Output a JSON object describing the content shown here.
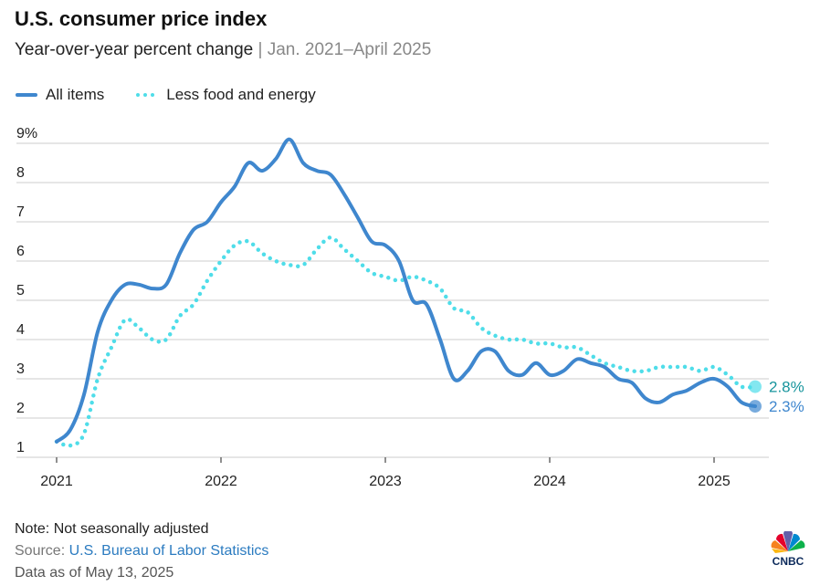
{
  "header": {
    "title": "U.S. consumer price index",
    "subtitle": "Year-over-year percent change",
    "separator": "|",
    "range": "Jan. 2021–April 2025"
  },
  "footer": {
    "note": "Note: Not seasonally adjusted",
    "source_label": "Source: ",
    "source_link": "U.S. Bureau of Labor Statistics",
    "as_of": "Data as of May 13, 2025",
    "logo": "CNBC"
  },
  "colors": {
    "all_items": "#3f87ce",
    "core": "#4fdde9",
    "core_label": "#17949c",
    "all_label": "#3f87ce",
    "grid": "#cccccc"
  },
  "chart_data": {
    "type": "line",
    "title": "U.S. consumer price index",
    "ylim": [
      1,
      9
    ],
    "yticks": [
      "1",
      "2",
      "3",
      "4",
      "5",
      "6",
      "7",
      "8",
      "9%"
    ],
    "xticks": [
      "2021",
      "2022",
      "2023",
      "2024",
      "2025"
    ],
    "x_start": "2021-01",
    "x_end": "2025-04",
    "frequency": "monthly",
    "grid": true,
    "legend": "top-left",
    "series": [
      {
        "name": "All items",
        "style": "solid",
        "end_label": "2.3%",
        "values": [
          1.4,
          1.7,
          2.6,
          4.2,
          5.0,
          5.4,
          5.4,
          5.3,
          5.4,
          6.2,
          6.8,
          7.0,
          7.5,
          7.9,
          8.5,
          8.3,
          8.6,
          9.1,
          8.5,
          8.3,
          8.2,
          7.7,
          7.1,
          6.5,
          6.4,
          6.0,
          5.0,
          4.9,
          4.0,
          3.0,
          3.2,
          3.7,
          3.7,
          3.2,
          3.1,
          3.4,
          3.1,
          3.2,
          3.5,
          3.4,
          3.3,
          3.0,
          2.9,
          2.5,
          2.4,
          2.6,
          2.7,
          2.9,
          3.0,
          2.8,
          2.4,
          2.3
        ]
      },
      {
        "name": "Less food and energy",
        "style": "dotted",
        "end_label": "2.8%",
        "values": [
          1.4,
          1.3,
          1.6,
          3.0,
          3.8,
          4.5,
          4.3,
          4.0,
          4.0,
          4.6,
          4.9,
          5.5,
          6.0,
          6.4,
          6.5,
          6.2,
          6.0,
          5.9,
          5.9,
          6.3,
          6.6,
          6.3,
          6.0,
          5.7,
          5.6,
          5.5,
          5.6,
          5.5,
          5.3,
          4.8,
          4.7,
          4.3,
          4.1,
          4.0,
          4.0,
          3.9,
          3.9,
          3.8,
          3.8,
          3.6,
          3.4,
          3.3,
          3.2,
          3.2,
          3.3,
          3.3,
          3.3,
          3.2,
          3.3,
          3.1,
          2.8,
          2.8
        ]
      }
    ]
  }
}
